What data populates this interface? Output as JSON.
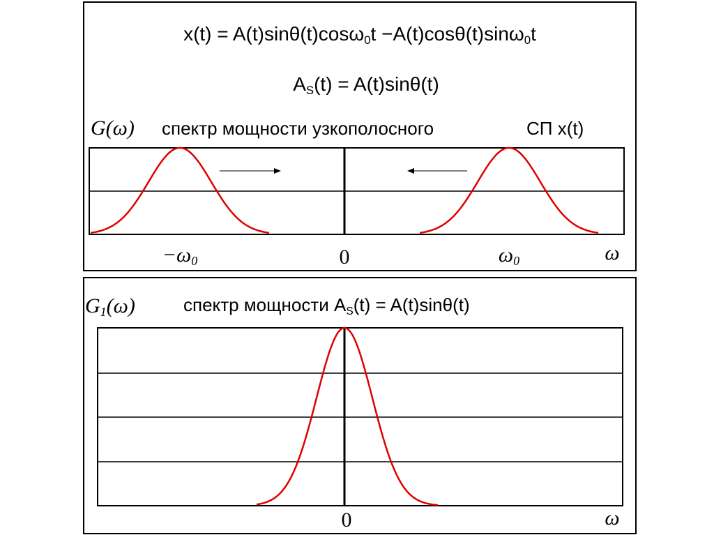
{
  "formulas": [
    [
      "x(t) = A(t)sinθ(t)cosω",
      "0",
      "t −A(t)cosθ(t)sinω",
      "0",
      "t"
    ],
    [
      "A",
      "S",
      "(t) = A(t)sinθ(t)"
    ]
  ],
  "top_panel": {
    "function_label": [
      "G(ω)"
    ],
    "caption": "спектр мощности узкополосного",
    "process_label": "СП x(t)",
    "axis_labels": {
      "neg_carrier": [
        "−ω",
        "0"
      ],
      "zero": "0",
      "carrier": [
        "ω",
        "0"
      ],
      "axis": "ω"
    }
  },
  "bottom_panel": {
    "function_label": [
      "G",
      "1",
      "(ω)"
    ],
    "caption": [
      "спектр мощности A",
      "S",
      "(t) = A(t)sinθ(t)"
    ],
    "axis_labels": {
      "zero": "0",
      "axis": "ω"
    }
  }
}
